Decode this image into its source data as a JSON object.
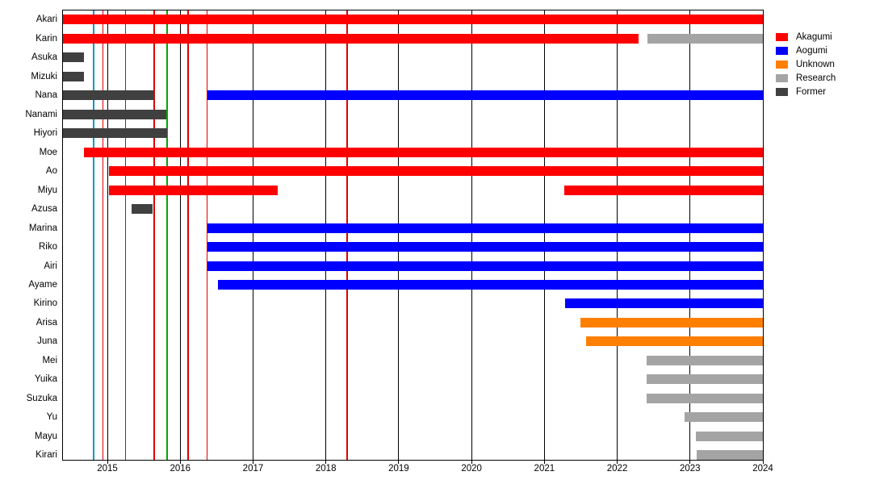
{
  "chart_data": {
    "type": "bar",
    "subtype": "gantt-timeline",
    "title": "",
    "xlabel": "",
    "ylabel": "",
    "x_axis": {
      "min": 2014.39,
      "max": 2024.0,
      "ticks": [
        "2015",
        "2016",
        "2017",
        "2018",
        "2019",
        "2020",
        "2021",
        "2022",
        "2023",
        "2024"
      ],
      "tick_values": [
        2015,
        2016,
        2017,
        2018,
        2019,
        2020,
        2021,
        2022,
        2023,
        2024
      ]
    },
    "group_colors": {
      "Akagumi": "#FF0000",
      "Aogumi": "#0000FF",
      "Unknown": "#FF7F00",
      "Research": "#A4A4A4",
      "Former": "#404040"
    },
    "legend": [
      {
        "label": "Akagumi",
        "color": "#FF0000"
      },
      {
        "label": "Aogumi",
        "color": "#0000FF"
      },
      {
        "label": "Unknown",
        "color": "#FF7F00"
      },
      {
        "label": "Research",
        "color": "#A4A4A4"
      },
      {
        "label": "Former",
        "color": "#404040"
      }
    ],
    "legend_position": "top-right",
    "grid": "year-lines",
    "rows": [
      {
        "name": "Akari",
        "segments": [
          {
            "start": 2014.39,
            "end": 2024.0,
            "group": "Akagumi"
          }
        ]
      },
      {
        "name": "Karin",
        "segments": [
          {
            "start": 2014.39,
            "end": 2022.29,
            "group": "Akagumi"
          },
          {
            "start": 2022.42,
            "end": 2024.0,
            "group": "Research"
          }
        ]
      },
      {
        "name": "Asuka",
        "segments": [
          {
            "start": 2014.39,
            "end": 2014.68,
            "group": "Former"
          }
        ]
      },
      {
        "name": "Mizuki",
        "segments": [
          {
            "start": 2014.39,
            "end": 2014.68,
            "group": "Former"
          }
        ]
      },
      {
        "name": "Nana",
        "segments": [
          {
            "start": 2014.39,
            "end": 2015.64,
            "group": "Former"
          },
          {
            "start": 2016.37,
            "end": 2024.0,
            "group": "Aogumi"
          }
        ]
      },
      {
        "name": "Nanami",
        "segments": [
          {
            "start": 2014.39,
            "end": 2015.81,
            "group": "Former"
          }
        ]
      },
      {
        "name": "Hiyori",
        "segments": [
          {
            "start": 2014.39,
            "end": 2015.82,
            "group": "Former"
          }
        ]
      },
      {
        "name": "Moe",
        "segments": [
          {
            "start": 2014.68,
            "end": 2024.0,
            "group": "Akagumi"
          }
        ]
      },
      {
        "name": "Ao",
        "segments": [
          {
            "start": 2015.02,
            "end": 2024.0,
            "group": "Akagumi"
          }
        ]
      },
      {
        "name": "Miyu",
        "segments": [
          {
            "start": 2015.02,
            "end": 2017.34,
            "group": "Akagumi"
          },
          {
            "start": 2021.27,
            "end": 2024.0,
            "group": "Akagumi"
          }
        ]
      },
      {
        "name": "Azusa",
        "segments": [
          {
            "start": 2015.33,
            "end": 2015.62,
            "group": "Former"
          }
        ]
      },
      {
        "name": "Marina",
        "segments": [
          {
            "start": 2016.37,
            "end": 2024.0,
            "group": "Aogumi"
          }
        ]
      },
      {
        "name": "Riko",
        "segments": [
          {
            "start": 2016.37,
            "end": 2024.0,
            "group": "Aogumi"
          }
        ]
      },
      {
        "name": "Airi",
        "segments": [
          {
            "start": 2016.37,
            "end": 2024.0,
            "group": "Aogumi"
          }
        ]
      },
      {
        "name": "Ayame",
        "segments": [
          {
            "start": 2016.52,
            "end": 2024.0,
            "group": "Aogumi"
          }
        ]
      },
      {
        "name": "Kirino",
        "segments": [
          {
            "start": 2021.28,
            "end": 2024.0,
            "group": "Aogumi"
          }
        ]
      },
      {
        "name": "Arisa",
        "segments": [
          {
            "start": 2021.5,
            "end": 2024.0,
            "group": "Unknown"
          }
        ]
      },
      {
        "name": "Juna",
        "segments": [
          {
            "start": 2021.57,
            "end": 2024.0,
            "group": "Unknown"
          }
        ]
      },
      {
        "name": "Mei",
        "segments": [
          {
            "start": 2022.4,
            "end": 2024.0,
            "group": "Research"
          }
        ]
      },
      {
        "name": "Yuika",
        "segments": [
          {
            "start": 2022.4,
            "end": 2024.0,
            "group": "Research"
          }
        ]
      },
      {
        "name": "Suzuka",
        "segments": [
          {
            "start": 2022.4,
            "end": 2024.0,
            "group": "Research"
          }
        ]
      },
      {
        "name": "Yu",
        "segments": [
          {
            "start": 2022.93,
            "end": 2024.0,
            "group": "Research"
          }
        ]
      },
      {
        "name": "Mayu",
        "segments": [
          {
            "start": 2023.08,
            "end": 2024.0,
            "group": "Research"
          }
        ]
      },
      {
        "name": "Kirari",
        "segments": [
          {
            "start": 2023.09,
            "end": 2024.0,
            "group": "Research"
          }
        ]
      }
    ],
    "year_lines": [
      2015,
      2016,
      2017,
      2018,
      2019,
      2020,
      2021,
      2022,
      2023
    ],
    "year_line_color": "#000000",
    "event_line_colors": {
      "red": "#E00000",
      "teal": "#0F97C4",
      "green": "#00A800"
    },
    "event_lines": [
      {
        "x": 2014.81,
        "color": "teal"
      },
      {
        "x": 2014.94,
        "color": "red"
      },
      {
        "x": 2015.25,
        "color": "red"
      },
      {
        "x": 2015.64,
        "color": "red"
      },
      {
        "x": 2015.82,
        "color": "green"
      },
      {
        "x": 2016.11,
        "color": "red"
      },
      {
        "x": 2016.37,
        "color": "red"
      },
      {
        "x": 2018.29,
        "color": "red"
      }
    ]
  }
}
